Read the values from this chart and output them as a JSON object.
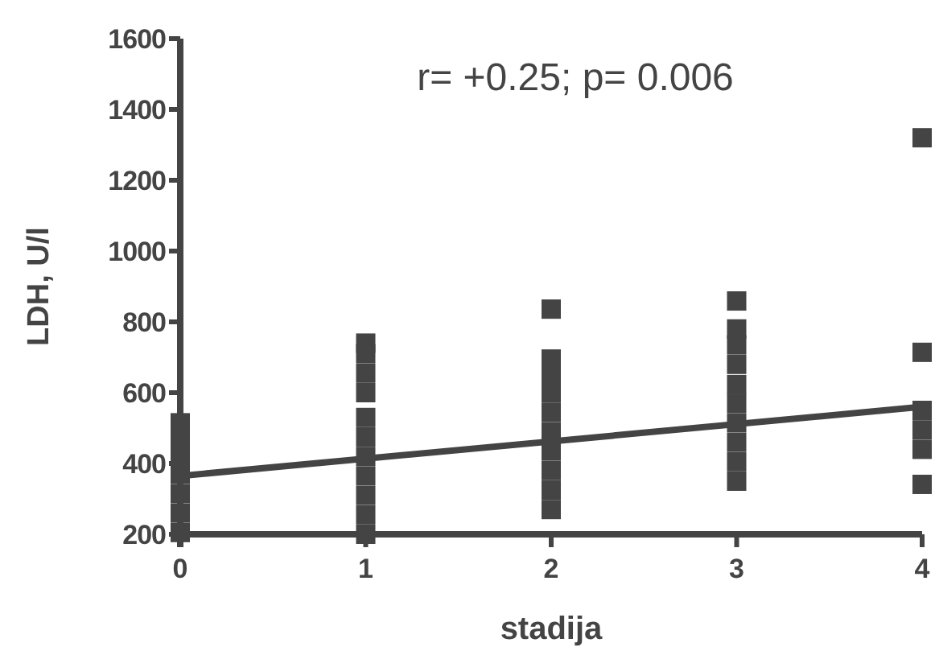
{
  "chart_data": {
    "type": "scatter",
    "xlabel": "stadija",
    "ylabel": "LDH, U/l",
    "xlim": [
      0,
      4
    ],
    "xticks": [
      0,
      1,
      2,
      3,
      4
    ],
    "ylim": [
      200,
      1600
    ],
    "yticks": [
      200,
      400,
      600,
      800,
      1000,
      1200,
      1400,
      1600
    ],
    "grid": false,
    "annotations": [
      "r= +0.25; p= 0.006"
    ],
    "series": [
      {
        "color": "#444444",
        "marker": "square",
        "x": [
          0,
          0,
          0,
          0,
          0,
          0,
          0,
          1,
          1,
          1,
          1,
          1,
          1,
          1,
          1,
          1,
          1,
          1,
          2,
          2,
          2,
          2,
          2,
          2,
          2,
          2,
          2,
          2,
          3,
          3,
          3,
          3,
          3,
          3,
          3,
          3,
          3,
          3,
          4,
          4,
          4,
          4,
          4,
          4
        ],
        "values": [
          205,
          260,
          315,
          370,
          420,
          465,
          515,
          200,
          255,
          310,
          365,
          420,
          475,
          530,
          600,
          655,
          710,
          740,
          270,
          325,
          380,
          435,
          490,
          545,
          600,
          650,
          695,
          836,
          350,
          405,
          460,
          515,
          570,
          623,
          680,
          735,
          780,
          859,
          1320,
          341,
          440,
          495,
          550,
          714
        ]
      },
      {
        "type": "line",
        "color": "#444444",
        "x": [
          0,
          4
        ],
        "values": [
          365,
          560
        ]
      }
    ]
  }
}
